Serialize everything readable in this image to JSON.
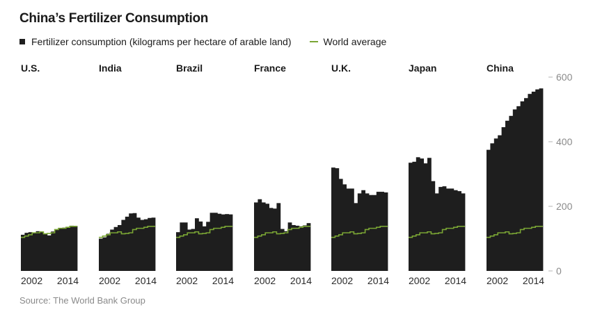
{
  "header": {
    "title": "China’s Fertilizer Consumption"
  },
  "legend": {
    "fertilizer_label": "Fertilizer consumption (kilograms per hectare of arable land)",
    "world_label": "World average"
  },
  "footer": {
    "source": "Source: The World Bank Group"
  },
  "colors": {
    "bars": "#1e1e1e",
    "world_line": "#7aa534",
    "axis_text": "#8a8a8a"
  },
  "chart_data": {
    "type": "area",
    "title": "China’s Fertilizer Consumption",
    "ylim": [
      0,
      600
    ],
    "y_ticks": [
      0,
      200,
      400,
      600
    ],
    "y_axis_position": "right",
    "x": [
      2002,
      2003,
      2004,
      2005,
      2006,
      2007,
      2008,
      2009,
      2010,
      2011,
      2012,
      2013,
      2014,
      2015,
      2016
    ],
    "x_tick_labels": [
      "2002",
      "2014"
    ],
    "world_average": [
      104,
      108,
      112,
      118,
      118,
      121,
      115,
      116,
      118,
      128,
      132,
      132,
      135,
      138,
      138
    ],
    "series": [
      {
        "name": "U.S.",
        "values": [
          112,
          118,
          120,
          117,
          123,
          121,
          115,
          110,
          122,
          128,
          133,
          134,
          136,
          140,
          139
        ]
      },
      {
        "name": "India",
        "values": [
          100,
          104,
          115,
          128,
          136,
          142,
          158,
          168,
          178,
          179,
          165,
          158,
          160,
          164,
          165
        ]
      },
      {
        "name": "Brazil",
        "values": [
          120,
          150,
          150,
          128,
          130,
          163,
          153,
          138,
          152,
          180,
          180,
          177,
          175,
          176,
          175
        ]
      },
      {
        "name": "France",
        "values": [
          212,
          222,
          212,
          208,
          195,
          193,
          210,
          130,
          123,
          150,
          142,
          140,
          138,
          141,
          148
        ]
      },
      {
        "name": "U.K.",
        "values": [
          320,
          318,
          285,
          268,
          255,
          255,
          210,
          240,
          250,
          240,
          235,
          235,
          245,
          245,
          243
        ]
      },
      {
        "name": "Japan",
        "values": [
          335,
          338,
          352,
          348,
          333,
          350,
          278,
          240,
          260,
          262,
          255,
          255,
          250,
          247,
          240
        ]
      },
      {
        "name": "China",
        "values": [
          375,
          395,
          410,
          420,
          445,
          465,
          480,
          500,
          510,
          525,
          535,
          548,
          555,
          562,
          565
        ]
      }
    ]
  }
}
